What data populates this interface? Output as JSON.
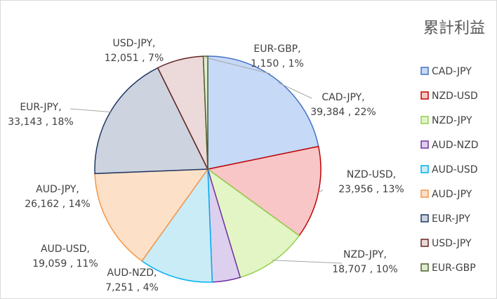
{
  "chart_data": {
    "type": "pie",
    "title": "累計利益",
    "legend_position": "right",
    "slices": [
      {
        "name": "CAD-JPY",
        "value": 39384,
        "percent": "22%",
        "color_fill": "#c6d9f7",
        "color_stroke": "#4472c4"
      },
      {
        "name": "NZD-USD",
        "value": 23956,
        "percent": "13%",
        "color_fill": "#f8c6c6",
        "color_stroke": "#c00000"
      },
      {
        "name": "NZD-JPY",
        "value": 18707,
        "percent": "10%",
        "color_fill": "#e3f5c4",
        "color_stroke": "#92d050"
      },
      {
        "name": "AUD-NZD",
        "value": 7251,
        "percent": "4%",
        "color_fill": "#dcd0ee",
        "color_stroke": "#7030a0"
      },
      {
        "name": "AUD-USD",
        "value": 19059,
        "percent": "11%",
        "color_fill": "#c9ecf7",
        "color_stroke": "#00b0f0"
      },
      {
        "name": "AUD-JPY",
        "value": 26162,
        "percent": "14%",
        "color_fill": "#fde0c8",
        "color_stroke": "#f79646"
      },
      {
        "name": "EUR-JPY",
        "value": 33143,
        "percent": "18%",
        "color_fill": "#cdd3df",
        "color_stroke": "#1f3864"
      },
      {
        "name": "USD-JPY",
        "value": 12051,
        "percent": "7%",
        "color_fill": "#ecd9d9",
        "color_stroke": "#632523"
      },
      {
        "name": "EUR-GBP",
        "value": 1150,
        "percent": "1%",
        "color_fill": "#e2ecd2",
        "color_stroke": "#4f6228"
      }
    ]
  }
}
